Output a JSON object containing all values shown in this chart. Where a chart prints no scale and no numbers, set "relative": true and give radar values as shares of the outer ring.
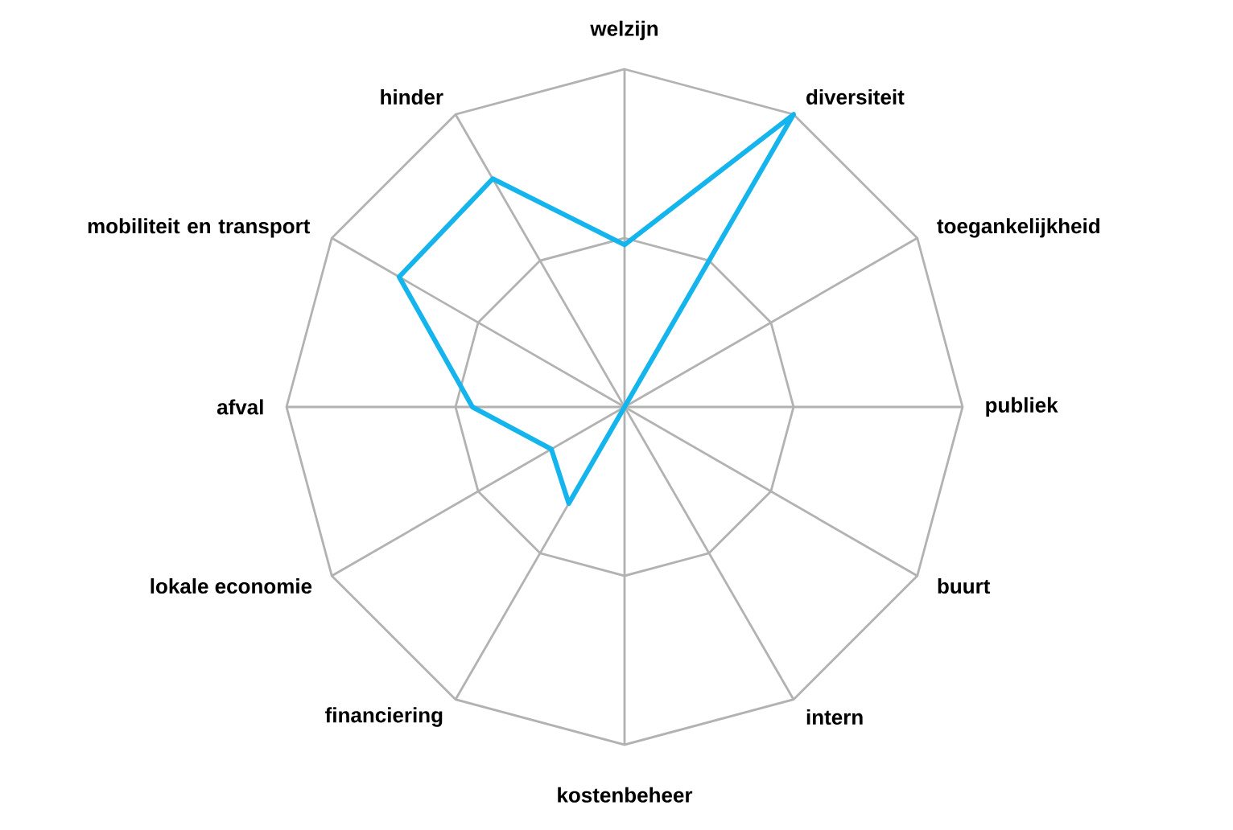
{
  "chart_data": {
    "type": "radar",
    "relative": true,
    "grid": true,
    "marker": "none",
    "categories": [
      "welzijn",
      "diversiteit",
      "toegankelijkheid",
      "publiek",
      "buurt",
      "intern",
      "kostenbeheer",
      "financiering",
      "lokale economie",
      "afval",
      "mobiliteit en transport",
      "hinder"
    ],
    "series": [
      {
        "color": "#14b4ec",
        "values": [
          0.48,
          1,
          0,
          0,
          0,
          0,
          0,
          0.33,
          0.25,
          0.45,
          0.77,
          0.78
        ]
      }
    ]
  }
}
